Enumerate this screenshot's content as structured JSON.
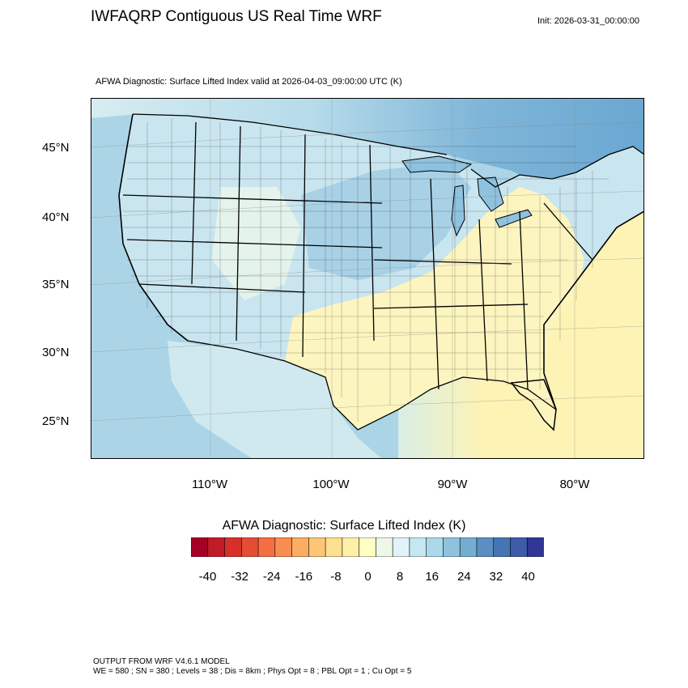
{
  "header": {
    "title": "IWFAQRP Contiguous US Real Time WRF",
    "init": "Init: 2026-03-31_00:00:00"
  },
  "map": {
    "subtitle": "AFWA Diagnostic: Surface Lifted Index valid at 2026-04-03_09:00:00 UTC   (K)",
    "lat_labels": [
      "45°N",
      "40°N",
      "35°N",
      "30°N",
      "25°N"
    ],
    "lon_labels": [
      "110°W",
      "100°W",
      "90°W",
      "80°W"
    ],
    "colors": {
      "land_cool": "#c7e6f0",
      "land_warm": "#fdf5c0",
      "ocean_east": "#fdf3b4",
      "ocean_west": "#abd5e7",
      "canada": "#9fcbe2",
      "boundary": "#000000"
    }
  },
  "colorbar": {
    "title": "AFWA Diagnostic: Surface Lifted Index  (K)",
    "tick_labels": [
      "-40",
      "-32",
      "-24",
      "-16",
      "-8",
      "0",
      "8",
      "16",
      "24",
      "32",
      "40"
    ],
    "colors": [
      "#a50026",
      "#c11b28",
      "#d7302a",
      "#e34d33",
      "#f46d43",
      "#f88d52",
      "#fcad61",
      "#fdc575",
      "#fee090",
      "#fff0a8",
      "#ffffc4",
      "#eef7e8",
      "#e0f3f8",
      "#c6e7f1",
      "#abd9e9",
      "#8fc3dd",
      "#74add1",
      "#5b8fc2",
      "#4575b4",
      "#3e5ca8",
      "#313695"
    ]
  },
  "footer": {
    "line1": "OUTPUT FROM WRF V4.6.1 MODEL",
    "line2": "WE = 580 ; SN = 380 ; Levels = 38 ; Dis = 8km ; Phys Opt = 8 ; PBL Opt = 1 ; Cu Opt = 5"
  }
}
